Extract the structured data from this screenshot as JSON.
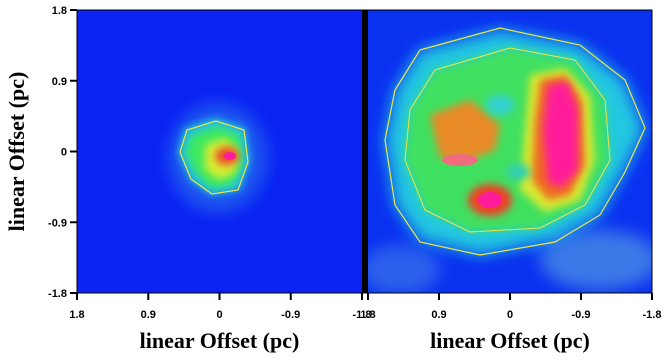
{
  "chart_data": [
    {
      "type": "image",
      "xlabel": "linear Offset (pc)",
      "ylabel": "linear Offset (pc)",
      "xlim": [
        1.8,
        -1.8
      ],
      "ylim": [
        -1.8,
        1.8
      ],
      "xticks": [
        1.8,
        0.9,
        0,
        -0.9,
        -1.8
      ],
      "yticks": [
        -1.8,
        -0.9,
        0,
        0.9,
        1.8
      ]
    },
    {
      "type": "image",
      "xlabel": "linear Offset (pc)",
      "xlim": [
        1.8,
        -1.8
      ],
      "ylim": [
        -1.8,
        1.8
      ],
      "xticks": [
        1.8,
        0.9,
        0,
        -0.9,
        -1.8
      ]
    }
  ]
}
